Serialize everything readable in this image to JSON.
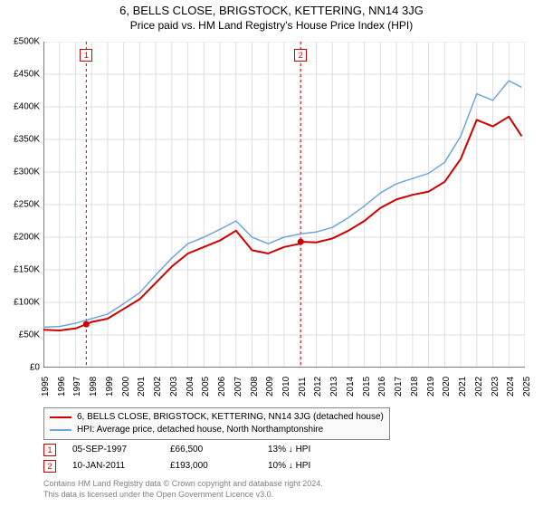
{
  "title": "6, BELLS CLOSE, BRIGSTOCK, KETTERING, NN14 3JG",
  "subtitle": "Price paid vs. HM Land Registry's House Price Index (HPI)",
  "chart": {
    "type": "line",
    "background_color": "#ffffff",
    "grid_color": "#dddddd",
    "axis_color": "#000000",
    "ylim": [
      0,
      500000
    ],
    "ytick_step": 50000,
    "xlim": [
      1995,
      2025
    ],
    "xtick_step": 1,
    "ytick_labels": [
      "£0",
      "£50K",
      "£100K",
      "£150K",
      "£200K",
      "£250K",
      "£300K",
      "£350K",
      "£400K",
      "£450K",
      "£500K"
    ],
    "xtick_labels": [
      "1995",
      "1996",
      "1997",
      "1998",
      "1999",
      "2000",
      "2001",
      "2002",
      "2003",
      "2004",
      "2005",
      "2006",
      "2007",
      "2008",
      "2009",
      "2010",
      "2011",
      "2012",
      "2013",
      "2014",
      "2015",
      "2016",
      "2017",
      "2018",
      "2019",
      "2020",
      "2021",
      "2022",
      "2023",
      "2024",
      "2025"
    ],
    "series": [
      {
        "name": "property",
        "color": "#cc0000",
        "width": 2,
        "x": [
          1995,
          1996,
          1997,
          1997.67,
          1998,
          1999,
          2000,
          2001,
          2002,
          2003,
          2004,
          2005,
          2006,
          2007,
          2008,
          2009,
          2010,
          2011,
          2011.03,
          2012,
          2013,
          2014,
          2015,
          2016,
          2017,
          2018,
          2019,
          2020,
          2021,
          2022,
          2023,
          2024,
          2024.8
        ],
        "y": [
          58000,
          57000,
          60000,
          66500,
          70000,
          75000,
          90000,
          105000,
          130000,
          155000,
          175000,
          185000,
          195000,
          210000,
          180000,
          175000,
          185000,
          190000,
          193000,
          192000,
          198000,
          210000,
          225000,
          245000,
          258000,
          265000,
          270000,
          285000,
          320000,
          380000,
          370000,
          385000,
          355000
        ]
      },
      {
        "name": "hpi",
        "color": "#6ea6d9",
        "width": 1.5,
        "x": [
          1995,
          1996,
          1997,
          1998,
          1999,
          2000,
          2001,
          2002,
          2003,
          2004,
          2005,
          2006,
          2007,
          2008,
          2009,
          2010,
          2011,
          2012,
          2013,
          2014,
          2015,
          2016,
          2017,
          2018,
          2019,
          2020,
          2021,
          2022,
          2023,
          2024,
          2024.8
        ],
        "y": [
          62000,
          63000,
          68000,
          75000,
          82000,
          98000,
          115000,
          142000,
          168000,
          190000,
          200000,
          212000,
          225000,
          200000,
          190000,
          200000,
          205000,
          208000,
          215000,
          230000,
          248000,
          268000,
          282000,
          290000,
          298000,
          315000,
          355000,
          420000,
          410000,
          440000,
          430000
        ]
      }
    ],
    "vlines": [
      {
        "x": 1997.67,
        "color": "#cc0000",
        "dash": "3,3"
      },
      {
        "x": 2011.03,
        "color": "#cc0000",
        "dash": "3,3"
      }
    ],
    "markers": [
      {
        "label": "1",
        "x": 1997.67,
        "price_y": 66500
      },
      {
        "label": "2",
        "x": 2011.03,
        "price_y": 193000
      }
    ]
  },
  "legend": {
    "items": [
      {
        "color": "#cc0000",
        "width": 2,
        "label": "6, BELLS CLOSE, BRIGSTOCK, KETTERING, NN14 3JG (detached house)"
      },
      {
        "color": "#6ea6d9",
        "width": 1.5,
        "label": "HPI: Average price, detached house, North Northamptonshire"
      }
    ]
  },
  "transactions": [
    {
      "marker": "1",
      "date": "05-SEP-1997",
      "price": "£66,500",
      "delta": "13% ↓ HPI"
    },
    {
      "marker": "2",
      "date": "10-JAN-2011",
      "price": "£193,000",
      "delta": "10% ↓ HPI"
    }
  ],
  "footer": {
    "line1": "Contains HM Land Registry data © Crown copyright and database right 2024.",
    "line2": "This data is licensed under the Open Government Licence v3.0."
  }
}
